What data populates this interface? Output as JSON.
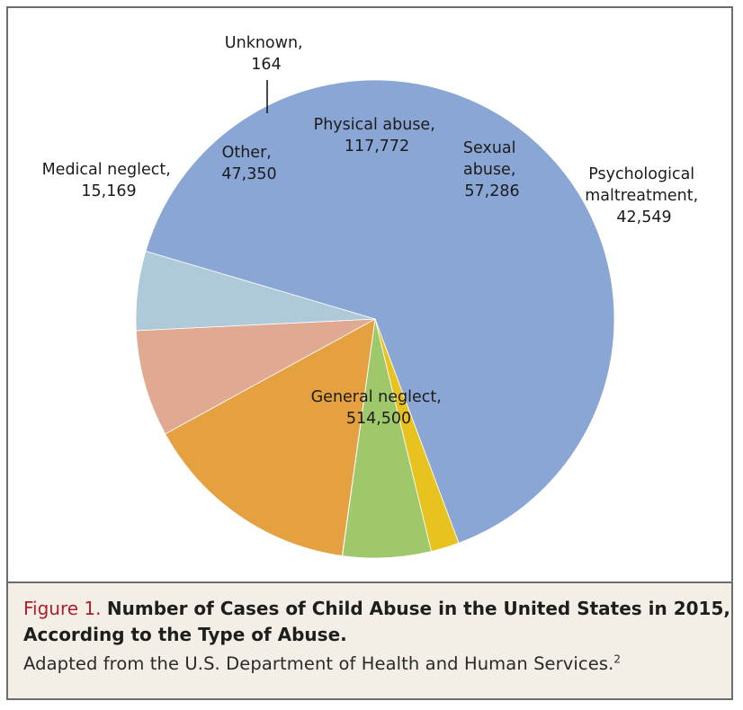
{
  "chart_data": {
    "type": "pie",
    "slices": [
      {
        "key": "general",
        "label": "General neglect,",
        "value": 514500,
        "value_text": "514,500",
        "color": "#8aa6d5"
      },
      {
        "key": "medical",
        "label": "Medical neglect,",
        "value": 15169,
        "value_text": "15,169",
        "color": "#e8c21f"
      },
      {
        "key": "other",
        "label": "Other,",
        "value": 47350,
        "value_text": "47,350",
        "color": "#9fc86b"
      },
      {
        "key": "unknown",
        "label": "Unknown,",
        "value": 164,
        "value_text": "164",
        "color": "#5b4ea2"
      },
      {
        "key": "physical",
        "label": "Physical abuse,",
        "value": 117772,
        "value_text": "117,772",
        "color": "#e5a040"
      },
      {
        "key": "sexual",
        "label_lines": [
          "Sexual",
          "abuse,"
        ],
        "value": 57286,
        "value_text": "57,286",
        "color": "#e1a991"
      },
      {
        "key": "psych",
        "label_lines": [
          "Psychological",
          "maltreatment,"
        ],
        "value": 42549,
        "value_text": "42,549",
        "color": "#aecad8"
      }
    ]
  },
  "caption": {
    "figure_label": "Figure 1.",
    "title_line1": "Number of Cases of Child Abuse in the United States in 2015,",
    "title_line2": "According to the Type of Abuse.",
    "source_text": "Adapted from the U.S. Department of Health and Human Services.",
    "source_sup": "2"
  }
}
